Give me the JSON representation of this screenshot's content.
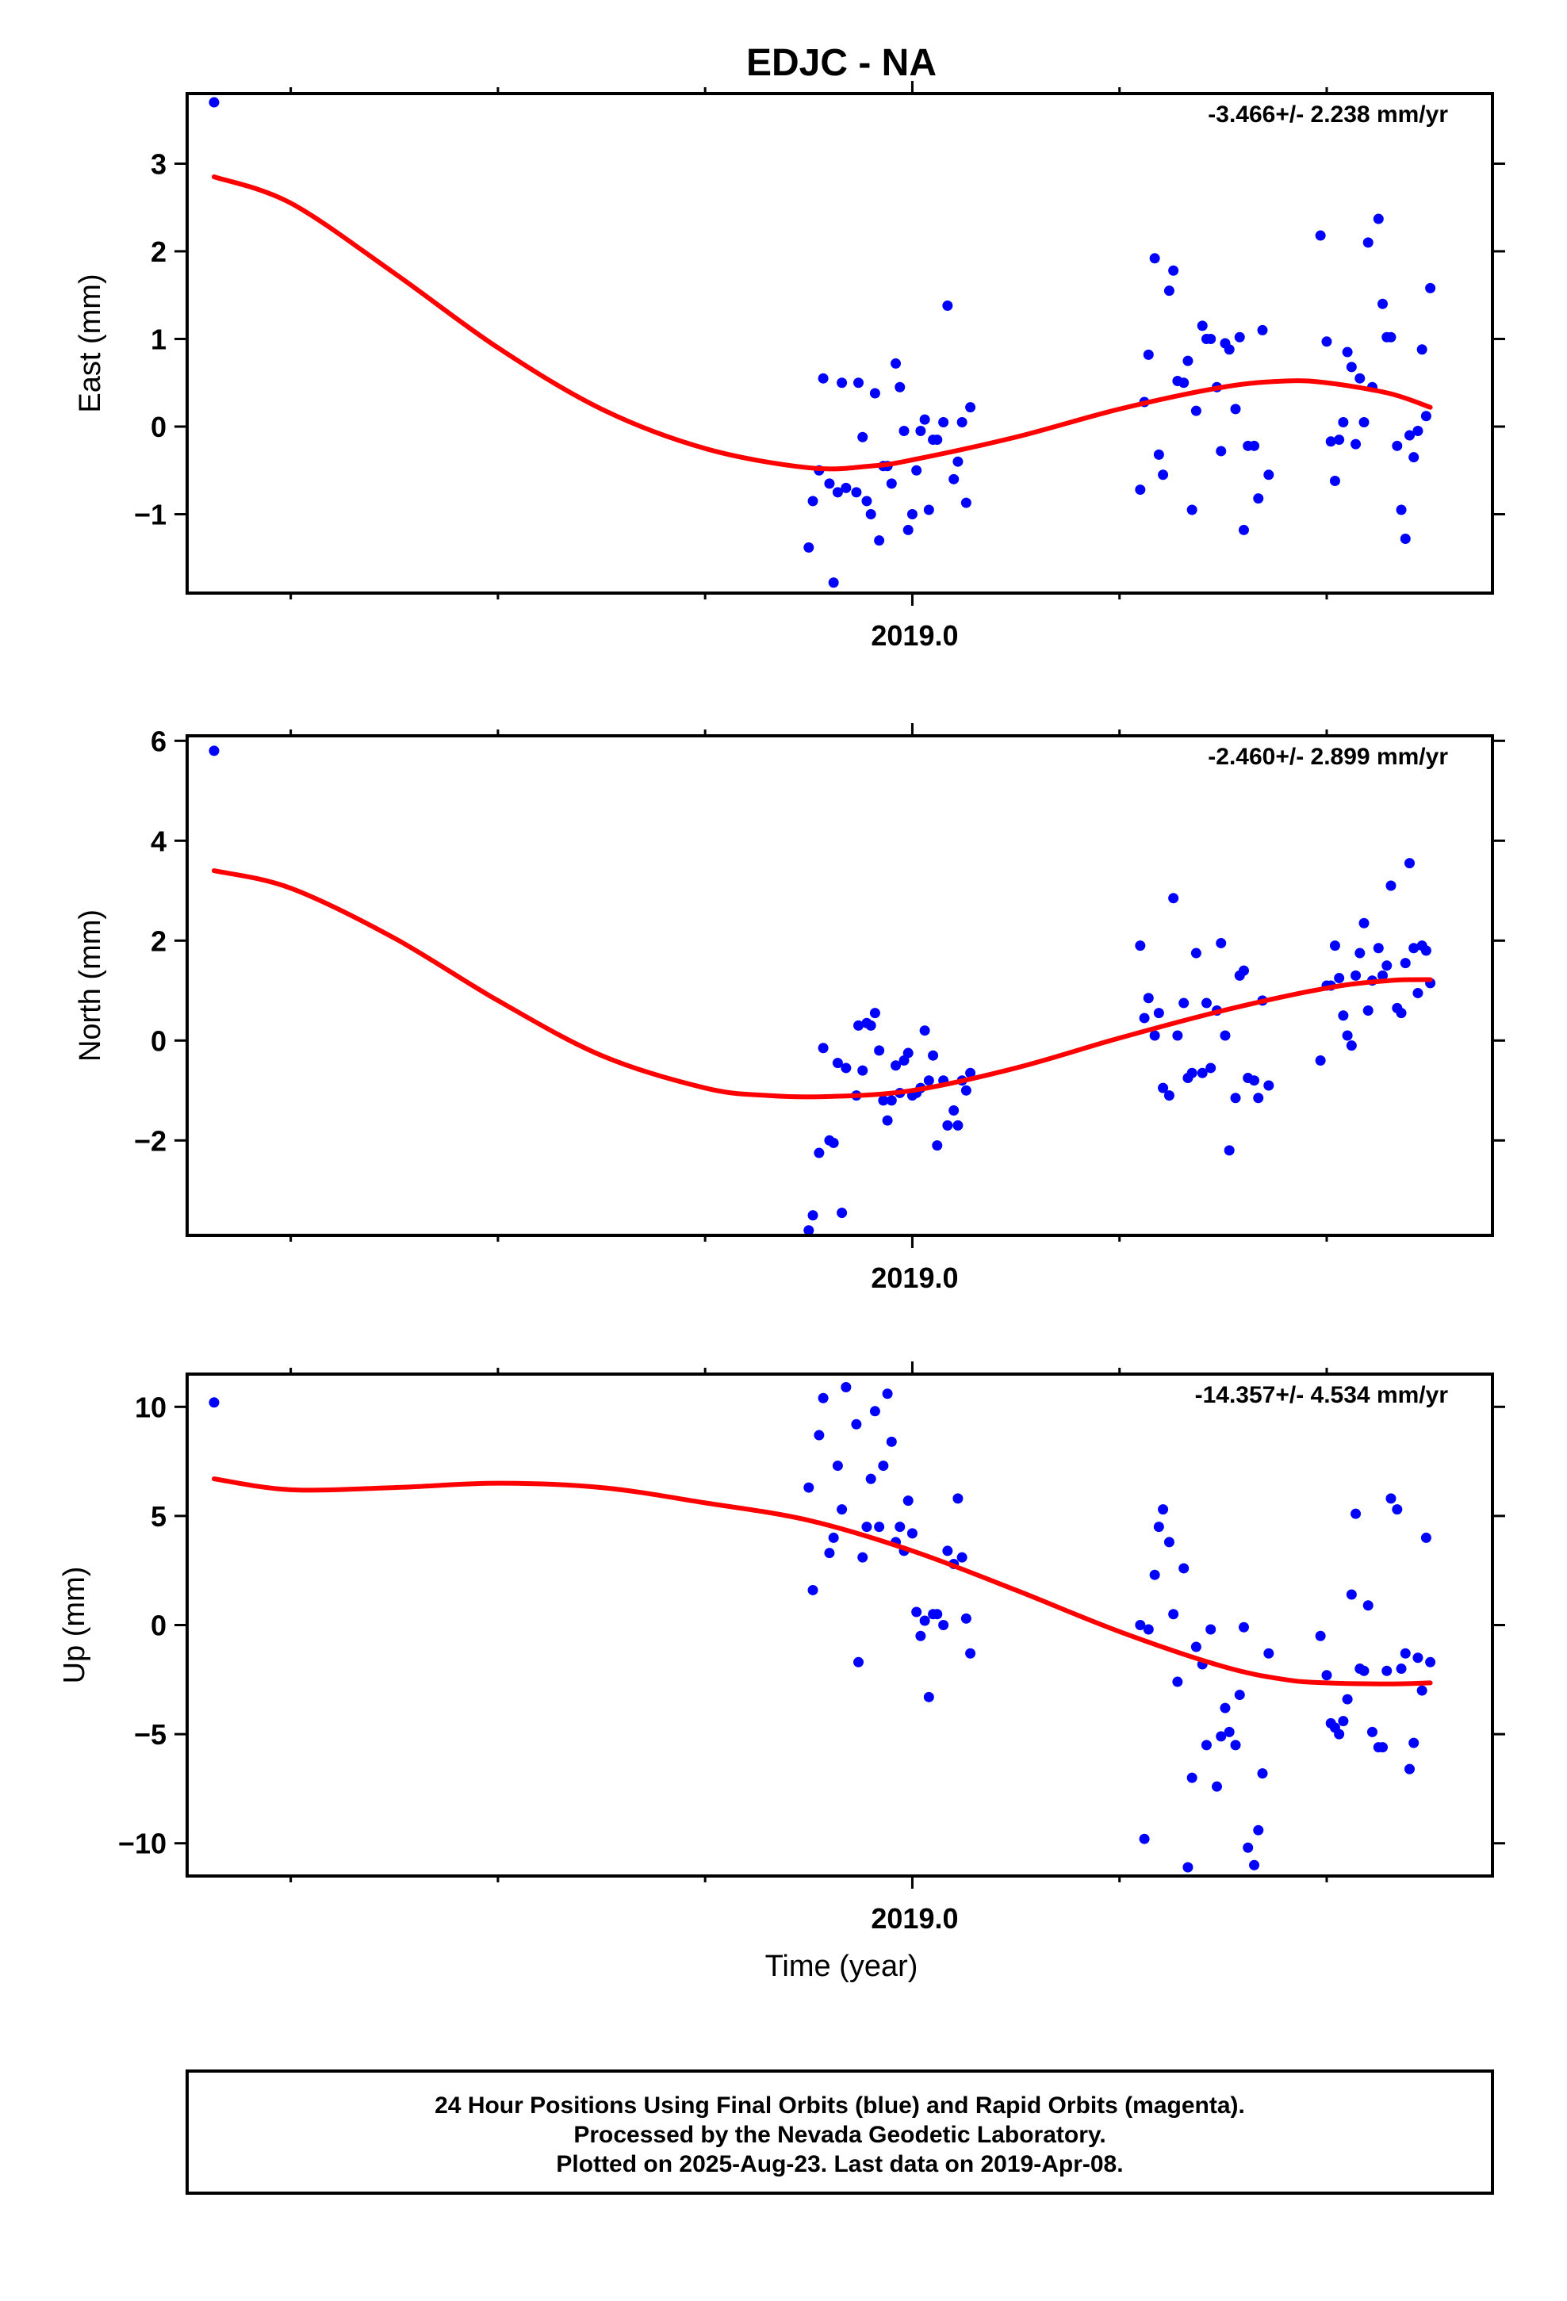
{
  "title": "EDJC - NA",
  "xlabel": "Time (year)",
  "footer": {
    "line1": "24 Hour Positions Using Final Orbits (blue) and Rapid Orbits (magenta).",
    "line2": "Processed by the Nevada Geodetic Laboratory.",
    "line3": "Plotted on 2025-Aug-23. Last data on 2019-Apr-08."
  },
  "colors": {
    "points": "#0000ff",
    "fit": "#ff0000",
    "frame": "#000000"
  },
  "chart_data": [
    {
      "type": "scatter",
      "ylabel": "East (mm)",
      "rate": "-3.466+/- 2.238 mm/yr",
      "xlim": [
        2018.65,
        2019.28
      ],
      "ylim": [
        -1.9,
        3.8
      ],
      "yticks": [
        -1,
        0,
        1,
        2,
        3
      ],
      "xticks": [
        {
          "value": 2019.0,
          "label": "2019.0"
        }
      ],
      "x_minor": [
        2018.7,
        2018.8,
        2018.9,
        2019.1,
        2019.2
      ],
      "points": [
        [
          2018.663,
          3.7
        ],
        [
          2018.95,
          -1.38
        ],
        [
          2018.952,
          -0.85
        ],
        [
          2018.955,
          -0.5
        ],
        [
          2018.957,
          0.55
        ],
        [
          2018.96,
          -0.65
        ],
        [
          2018.962,
          -1.78
        ],
        [
          2018.964,
          -0.75
        ],
        [
          2018.966,
          0.5
        ],
        [
          2018.968,
          -0.7
        ],
        [
          2018.973,
          -0.75
        ],
        [
          2018.974,
          0.5
        ],
        [
          2018.976,
          -0.12
        ],
        [
          2018.978,
          -0.85
        ],
        [
          2018.98,
          -1.0
        ],
        [
          2018.982,
          0.38
        ],
        [
          2018.984,
          -1.3
        ],
        [
          2018.986,
          -0.45
        ],
        [
          2018.988,
          -0.45
        ],
        [
          2018.99,
          -0.65
        ],
        [
          2018.992,
          0.72
        ],
        [
          2018.994,
          0.45
        ],
        [
          2018.996,
          -0.05
        ],
        [
          2018.998,
          -1.18
        ],
        [
          2019.0,
          -1.0
        ],
        [
          2019.002,
          -0.5
        ],
        [
          2019.004,
          -0.05
        ],
        [
          2019.006,
          0.08
        ],
        [
          2019.008,
          -0.95
        ],
        [
          2019.01,
          -0.15
        ],
        [
          2019.012,
          -0.15
        ],
        [
          2019.015,
          0.05
        ],
        [
          2019.017,
          1.38
        ],
        [
          2019.02,
          -0.6
        ],
        [
          2019.022,
          -0.4
        ],
        [
          2019.024,
          0.05
        ],
        [
          2019.026,
          -0.87
        ],
        [
          2019.028,
          0.22
        ],
        [
          2019.11,
          -0.72
        ],
        [
          2019.112,
          0.28
        ],
        [
          2019.114,
          0.82
        ],
        [
          2019.117,
          1.92
        ],
        [
          2019.119,
          -0.32
        ],
        [
          2019.121,
          -0.55
        ],
        [
          2019.124,
          1.55
        ],
        [
          2019.126,
          1.78
        ],
        [
          2019.128,
          0.52
        ],
        [
          2019.131,
          0.5
        ],
        [
          2019.133,
          0.75
        ],
        [
          2019.135,
          -0.95
        ],
        [
          2019.137,
          0.18
        ],
        [
          2019.14,
          1.15
        ],
        [
          2019.142,
          1.0
        ],
        [
          2019.144,
          1.0
        ],
        [
          2019.147,
          0.45
        ],
        [
          2019.149,
          -0.28
        ],
        [
          2019.151,
          0.95
        ],
        [
          2019.153,
          0.88
        ],
        [
          2019.156,
          0.2
        ],
        [
          2019.158,
          1.02
        ],
        [
          2019.16,
          -1.18
        ],
        [
          2019.162,
          -0.22
        ],
        [
          2019.165,
          -0.22
        ],
        [
          2019.167,
          -0.82
        ],
        [
          2019.169,
          1.1
        ],
        [
          2019.172,
          -0.55
        ],
        [
          2019.197,
          2.18
        ],
        [
          2019.2,
          0.97
        ],
        [
          2019.202,
          -0.17
        ],
        [
          2019.204,
          -0.62
        ],
        [
          2019.206,
          -0.15
        ],
        [
          2019.208,
          0.05
        ],
        [
          2019.21,
          0.85
        ],
        [
          2019.212,
          0.68
        ],
        [
          2019.214,
          -0.2
        ],
        [
          2019.216,
          0.55
        ],
        [
          2019.218,
          0.05
        ],
        [
          2019.22,
          2.1
        ],
        [
          2019.222,
          0.45
        ],
        [
          2019.225,
          2.37
        ],
        [
          2019.227,
          1.4
        ],
        [
          2019.229,
          1.02
        ],
        [
          2019.231,
          1.02
        ],
        [
          2019.234,
          -0.22
        ],
        [
          2019.236,
          -0.95
        ],
        [
          2019.238,
          -1.28
        ],
        [
          2019.24,
          -0.1
        ],
        [
          2019.242,
          -0.35
        ],
        [
          2019.244,
          -0.05
        ],
        [
          2019.246,
          0.88
        ],
        [
          2019.248,
          0.12
        ],
        [
          2019.25,
          1.58
        ]
      ],
      "fit": [
        [
          2018.663,
          2.85
        ],
        [
          2018.7,
          2.55
        ],
        [
          2018.75,
          1.75
        ],
        [
          2018.8,
          0.9
        ],
        [
          2018.85,
          0.2
        ],
        [
          2018.9,
          -0.25
        ],
        [
          2018.95,
          -0.47
        ],
        [
          2018.98,
          -0.45
        ],
        [
          2019.0,
          -0.38
        ],
        [
          2019.05,
          -0.12
        ],
        [
          2019.1,
          0.2
        ],
        [
          2019.15,
          0.45
        ],
        [
          2019.18,
          0.52
        ],
        [
          2019.2,
          0.5
        ],
        [
          2019.23,
          0.38
        ],
        [
          2019.25,
          0.22
        ]
      ]
    },
    {
      "type": "scatter",
      "ylabel": "North (mm)",
      "rate": "-2.460+/- 2.899 mm/yr",
      "xlim": [
        2018.65,
        2019.28
      ],
      "ylim": [
        -3.9,
        6.1
      ],
      "yticks": [
        -2,
        0,
        2,
        4,
        6
      ],
      "xticks": [
        {
          "value": 2019.0,
          "label": "2019.0"
        }
      ],
      "x_minor": [
        2018.7,
        2018.8,
        2018.9,
        2019.1,
        2019.2
      ],
      "points": [
        [
          2018.663,
          5.8
        ],
        [
          2018.95,
          -3.8
        ],
        [
          2018.952,
          -3.5
        ],
        [
          2018.955,
          -2.25
        ],
        [
          2018.957,
          -0.15
        ],
        [
          2018.96,
          -2.0
        ],
        [
          2018.962,
          -2.05
        ],
        [
          2018.964,
          -0.45
        ],
        [
          2018.966,
          -3.45
        ],
        [
          2018.968,
          -0.55
        ],
        [
          2018.973,
          -1.1
        ],
        [
          2018.974,
          0.3
        ],
        [
          2018.976,
          -0.6
        ],
        [
          2018.978,
          0.35
        ],
        [
          2018.98,
          0.3
        ],
        [
          2018.982,
          0.55
        ],
        [
          2018.984,
          -0.2
        ],
        [
          2018.986,
          -1.2
        ],
        [
          2018.988,
          -1.6
        ],
        [
          2018.99,
          -1.2
        ],
        [
          2018.992,
          -0.5
        ],
        [
          2018.994,
          -1.05
        ],
        [
          2018.996,
          -0.4
        ],
        [
          2018.998,
          -0.25
        ],
        [
          2019.0,
          -1.1
        ],
        [
          2019.002,
          -1.05
        ],
        [
          2019.004,
          -0.95
        ],
        [
          2019.006,
          0.2
        ],
        [
          2019.008,
          -0.8
        ],
        [
          2019.01,
          -0.3
        ],
        [
          2019.012,
          -2.1
        ],
        [
          2019.015,
          -0.8
        ],
        [
          2019.017,
          -1.7
        ],
        [
          2019.02,
          -1.4
        ],
        [
          2019.022,
          -1.7
        ],
        [
          2019.024,
          -0.8
        ],
        [
          2019.026,
          -1.0
        ],
        [
          2019.028,
          -0.65
        ],
        [
          2019.11,
          1.9
        ],
        [
          2019.112,
          0.45
        ],
        [
          2019.114,
          0.85
        ],
        [
          2019.117,
          0.1
        ],
        [
          2019.119,
          0.55
        ],
        [
          2019.121,
          -0.95
        ],
        [
          2019.124,
          -1.1
        ],
        [
          2019.126,
          2.85
        ],
        [
          2019.128,
          0.1
        ],
        [
          2019.131,
          0.75
        ],
        [
          2019.133,
          -0.75
        ],
        [
          2019.135,
          -0.65
        ],
        [
          2019.137,
          1.75
        ],
        [
          2019.14,
          -0.65
        ],
        [
          2019.142,
          0.75
        ],
        [
          2019.144,
          -0.55
        ],
        [
          2019.147,
          0.6
        ],
        [
          2019.149,
          1.95
        ],
        [
          2019.151,
          0.1
        ],
        [
          2019.153,
          -2.2
        ],
        [
          2019.156,
          -1.15
        ],
        [
          2019.158,
          1.3
        ],
        [
          2019.16,
          1.4
        ],
        [
          2019.162,
          -0.75
        ],
        [
          2019.165,
          -0.8
        ],
        [
          2019.167,
          -1.15
        ],
        [
          2019.169,
          0.8
        ],
        [
          2019.172,
          -0.9
        ],
        [
          2019.197,
          -0.4
        ],
        [
          2019.2,
          1.1
        ],
        [
          2019.202,
          1.1
        ],
        [
          2019.204,
          1.9
        ],
        [
          2019.206,
          1.25
        ],
        [
          2019.208,
          0.5
        ],
        [
          2019.21,
          0.1
        ],
        [
          2019.212,
          -0.1
        ],
        [
          2019.214,
          1.3
        ],
        [
          2019.216,
          1.75
        ],
        [
          2019.218,
          2.35
        ],
        [
          2019.22,
          0.6
        ],
        [
          2019.222,
          1.2
        ],
        [
          2019.225,
          1.85
        ],
        [
          2019.227,
          1.3
        ],
        [
          2019.229,
          1.5
        ],
        [
          2019.231,
          3.1
        ],
        [
          2019.234,
          0.65
        ],
        [
          2019.236,
          0.55
        ],
        [
          2019.238,
          1.55
        ],
        [
          2019.24,
          3.55
        ],
        [
          2019.242,
          1.85
        ],
        [
          2019.244,
          0.95
        ],
        [
          2019.246,
          1.9
        ],
        [
          2019.248,
          1.8
        ],
        [
          2019.25,
          1.15
        ]
      ],
      "fit": [
        [
          2018.663,
          3.4
        ],
        [
          2018.7,
          3.05
        ],
        [
          2018.75,
          2.05
        ],
        [
          2018.8,
          0.8
        ],
        [
          2018.85,
          -0.3
        ],
        [
          2018.9,
          -0.95
        ],
        [
          2018.93,
          -1.1
        ],
        [
          2018.96,
          -1.12
        ],
        [
          2019.0,
          -1.0
        ],
        [
          2019.05,
          -0.55
        ],
        [
          2019.1,
          0.05
        ],
        [
          2019.15,
          0.6
        ],
        [
          2019.2,
          1.05
        ],
        [
          2019.23,
          1.2
        ],
        [
          2019.25,
          1.22
        ]
      ]
    },
    {
      "type": "scatter",
      "ylabel": "Up (mm)",
      "rate": "-14.357+/- 4.534 mm/yr",
      "xlim": [
        2018.65,
        2019.28
      ],
      "ylim": [
        -11.5,
        11.5
      ],
      "yticks": [
        -10,
        -5,
        0,
        5,
        10
      ],
      "xticks": [
        {
          "value": 2019.0,
          "label": "2019.0"
        }
      ],
      "x_minor": [
        2018.7,
        2018.8,
        2018.9,
        2019.1,
        2019.2
      ],
      "points": [
        [
          2018.663,
          10.2
        ],
        [
          2018.95,
          6.3
        ],
        [
          2018.952,
          1.6
        ],
        [
          2018.955,
          8.7
        ],
        [
          2018.957,
          10.4
        ],
        [
          2018.96,
          3.3
        ],
        [
          2018.962,
          4.0
        ],
        [
          2018.964,
          7.3
        ],
        [
          2018.966,
          5.3
        ],
        [
          2018.968,
          10.9
        ],
        [
          2018.973,
          9.2
        ],
        [
          2018.974,
          -1.7
        ],
        [
          2018.976,
          3.1
        ],
        [
          2018.978,
          4.5
        ],
        [
          2018.98,
          6.7
        ],
        [
          2018.982,
          9.8
        ],
        [
          2018.984,
          4.5
        ],
        [
          2018.986,
          7.3
        ],
        [
          2018.988,
          10.6
        ],
        [
          2018.99,
          8.4
        ],
        [
          2018.992,
          3.8
        ],
        [
          2018.994,
          4.5
        ],
        [
          2018.996,
          3.4
        ],
        [
          2018.998,
          5.7
        ],
        [
          2019.0,
          4.2
        ],
        [
          2019.002,
          0.6
        ],
        [
          2019.004,
          -0.5
        ],
        [
          2019.006,
          0.2
        ],
        [
          2019.008,
          -3.3
        ],
        [
          2019.01,
          0.5
        ],
        [
          2019.012,
          0.5
        ],
        [
          2019.015,
          0.0
        ],
        [
          2019.017,
          3.4
        ],
        [
          2019.02,
          2.8
        ],
        [
          2019.022,
          5.8
        ],
        [
          2019.024,
          3.1
        ],
        [
          2019.026,
          0.3
        ],
        [
          2019.028,
          -1.3
        ],
        [
          2019.11,
          0.0
        ],
        [
          2019.112,
          -9.8
        ],
        [
          2019.114,
          -0.2
        ],
        [
          2019.117,
          2.3
        ],
        [
          2019.119,
          4.5
        ],
        [
          2019.121,
          5.3
        ],
        [
          2019.124,
          3.8
        ],
        [
          2019.126,
          0.5
        ],
        [
          2019.128,
          -2.6
        ],
        [
          2019.131,
          2.6
        ],
        [
          2019.133,
          -11.1
        ],
        [
          2019.135,
          -7.0
        ],
        [
          2019.137,
          -1.0
        ],
        [
          2019.14,
          -1.8
        ],
        [
          2019.142,
          -5.5
        ],
        [
          2019.144,
          -0.2
        ],
        [
          2019.147,
          -7.4
        ],
        [
          2019.149,
          -5.1
        ],
        [
          2019.151,
          -3.8
        ],
        [
          2019.153,
          -4.9
        ],
        [
          2019.156,
          -5.5
        ],
        [
          2019.158,
          -3.2
        ],
        [
          2019.16,
          -0.1
        ],
        [
          2019.162,
          -10.2
        ],
        [
          2019.165,
          -11.0
        ],
        [
          2019.167,
          -9.4
        ],
        [
          2019.169,
          -6.8
        ],
        [
          2019.172,
          -1.3
        ],
        [
          2019.197,
          -0.5
        ],
        [
          2019.2,
          -2.3
        ],
        [
          2019.202,
          -4.5
        ],
        [
          2019.204,
          -4.7
        ],
        [
          2019.206,
          -5.0
        ],
        [
          2019.208,
          -4.4
        ],
        [
          2019.21,
          -3.4
        ],
        [
          2019.212,
          1.4
        ],
        [
          2019.214,
          5.1
        ],
        [
          2019.216,
          -2.0
        ],
        [
          2019.218,
          -2.1
        ],
        [
          2019.22,
          0.9
        ],
        [
          2019.222,
          -4.9
        ],
        [
          2019.225,
          -5.6
        ],
        [
          2019.227,
          -5.6
        ],
        [
          2019.229,
          -2.1
        ],
        [
          2019.231,
          5.8
        ],
        [
          2019.234,
          5.3
        ],
        [
          2019.236,
          -2.0
        ],
        [
          2019.238,
          -1.3
        ],
        [
          2019.24,
          -6.6
        ],
        [
          2019.242,
          -5.4
        ],
        [
          2019.244,
          -1.5
        ],
        [
          2019.246,
          -3.0
        ],
        [
          2019.248,
          4.0
        ],
        [
          2019.25,
          -1.7
        ]
      ],
      "fit": [
        [
          2018.663,
          6.7
        ],
        [
          2018.7,
          6.2
        ],
        [
          2018.75,
          6.3
        ],
        [
          2018.8,
          6.5
        ],
        [
          2018.85,
          6.3
        ],
        [
          2018.9,
          5.6
        ],
        [
          2018.95,
          4.8
        ],
        [
          2019.0,
          3.4
        ],
        [
          2019.05,
          1.6
        ],
        [
          2019.1,
          -0.3
        ],
        [
          2019.15,
          -1.9
        ],
        [
          2019.18,
          -2.5
        ],
        [
          2019.2,
          -2.65
        ],
        [
          2019.23,
          -2.7
        ],
        [
          2019.25,
          -2.65
        ]
      ]
    }
  ]
}
